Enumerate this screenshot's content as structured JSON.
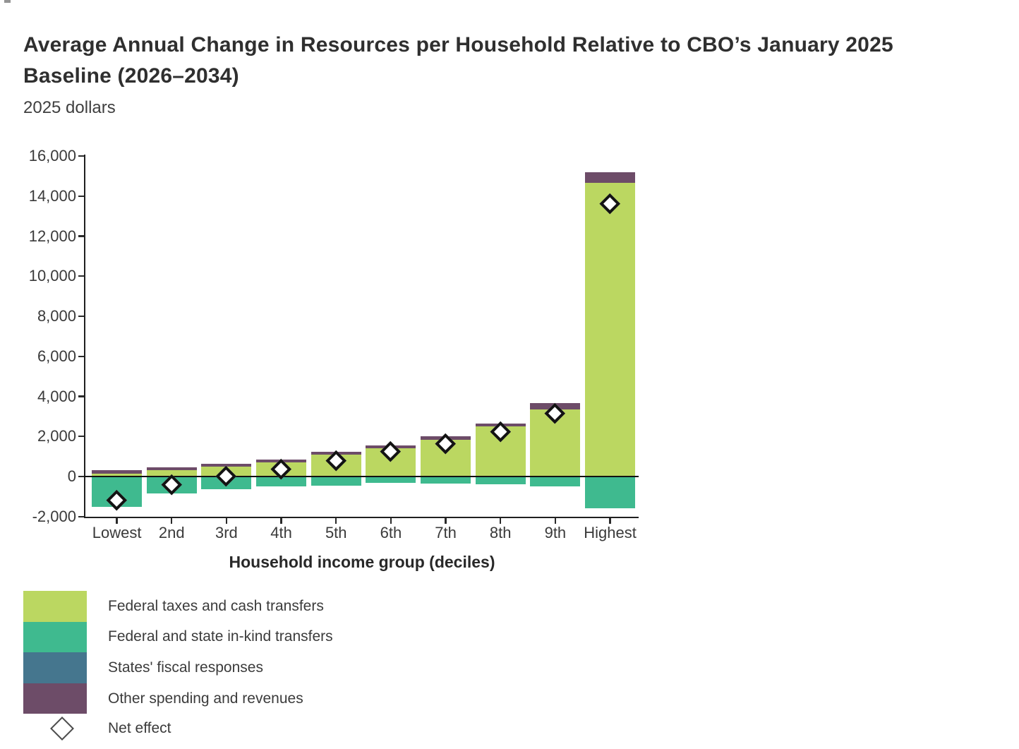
{
  "header": {
    "title": "Average Annual Change in Resources per Household Relative to CBO’s January 2025 Baseline (2026–2034)",
    "subtitle": "2025 dollars"
  },
  "chart_data": {
    "type": "bar",
    "stacked": true,
    "title": "Average Annual Change in Resources per Household Relative to CBO’s January 2025 Baseline (2026–2034)",
    "subtitle": "2025 dollars",
    "units": "2025 dollars",
    "xlabel": "Household income group (deciles)",
    "ylabel": "",
    "grid": false,
    "legend_position": "bottom-left",
    "ylim": [
      -2000,
      16000
    ],
    "categories": [
      "Lowest",
      "2nd",
      "3rd",
      "4th",
      "5th",
      "6th",
      "7th",
      "8th",
      "9th",
      "Highest"
    ],
    "series": [
      {
        "name": "Federal taxes and cash transfers",
        "color": "#bbd761",
        "values": [
          150,
          300,
          500,
          700,
          1100,
          1400,
          1850,
          2500,
          3350,
          14650
        ]
      },
      {
        "name": "Federal and state in-kind transfers",
        "color": "#3fba8f",
        "values": [
          -1500,
          -850,
          -650,
          -500,
          -450,
          -300,
          -350,
          -400,
          -500,
          -1600
        ]
      },
      {
        "name": "States' fiscal responses",
        "color": "#45768e",
        "values": [
          0,
          0,
          0,
          0,
          0,
          0,
          0,
          0,
          0,
          0
        ]
      },
      {
        "name": "Other spending and revenues",
        "color": "#6d4c68",
        "values": [
          150,
          150,
          150,
          150,
          150,
          150,
          150,
          150,
          300,
          550
        ]
      }
    ],
    "markers": {
      "name": "Net effect",
      "shape": "diamond",
      "values": [
        -1200,
        -400,
        0,
        350,
        800,
        1250,
        1650,
        2250,
        3150,
        13600
      ]
    },
    "y_ticks": [
      {
        "label": "16,000",
        "value": 16000
      },
      {
        "label": "14,000",
        "value": 14000
      },
      {
        "label": "12,000",
        "value": 12000
      },
      {
        "label": "10,000",
        "value": 10000
      },
      {
        "label": "8,000",
        "value": 8000
      },
      {
        "label": "6,000",
        "value": 6000
      },
      {
        "label": "4,000",
        "value": 4000
      },
      {
        "label": "2,000",
        "value": 2000
      },
      {
        "label": "0",
        "value": 0
      },
      {
        "label": "-2,000",
        "value": -2000
      }
    ]
  },
  "legend": {
    "items": [
      {
        "label": "Federal taxes and cash transfers",
        "color": "#bbd761"
      },
      {
        "label": "Federal and state in-kind transfers",
        "color": "#3fba8f"
      },
      {
        "label": "States' fiscal responses",
        "color": "#45768e"
      },
      {
        "label": "Other spending and revenues",
        "color": "#6d4c68"
      },
      {
        "label": "Net effect",
        "color": null,
        "marker": "diamond"
      }
    ]
  }
}
